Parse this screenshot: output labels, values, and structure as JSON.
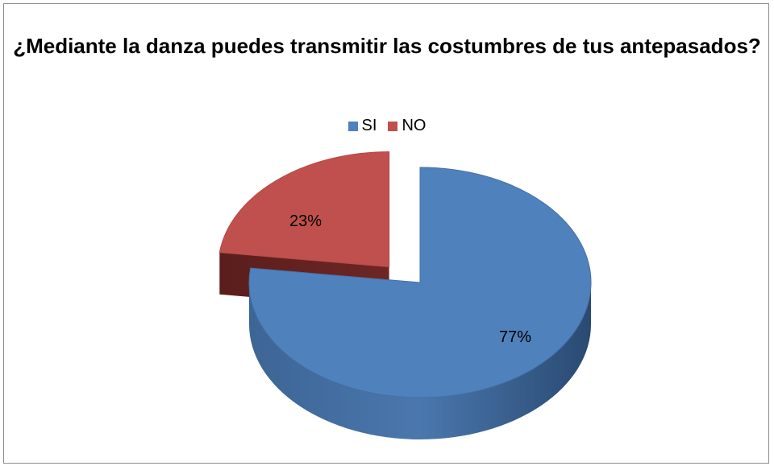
{
  "chart_data": {
    "type": "pie",
    "title": "¿Mediante la danza puedes transmitir las costumbres de tus antepasados?",
    "categories": [
      "SI",
      "NO"
    ],
    "values": [
      77,
      23
    ],
    "data_labels": [
      "77%",
      "23%"
    ],
    "colors": [
      "#4f81bd",
      "#c0504d"
    ],
    "legend_position": "top",
    "style": "3d-exploded"
  }
}
